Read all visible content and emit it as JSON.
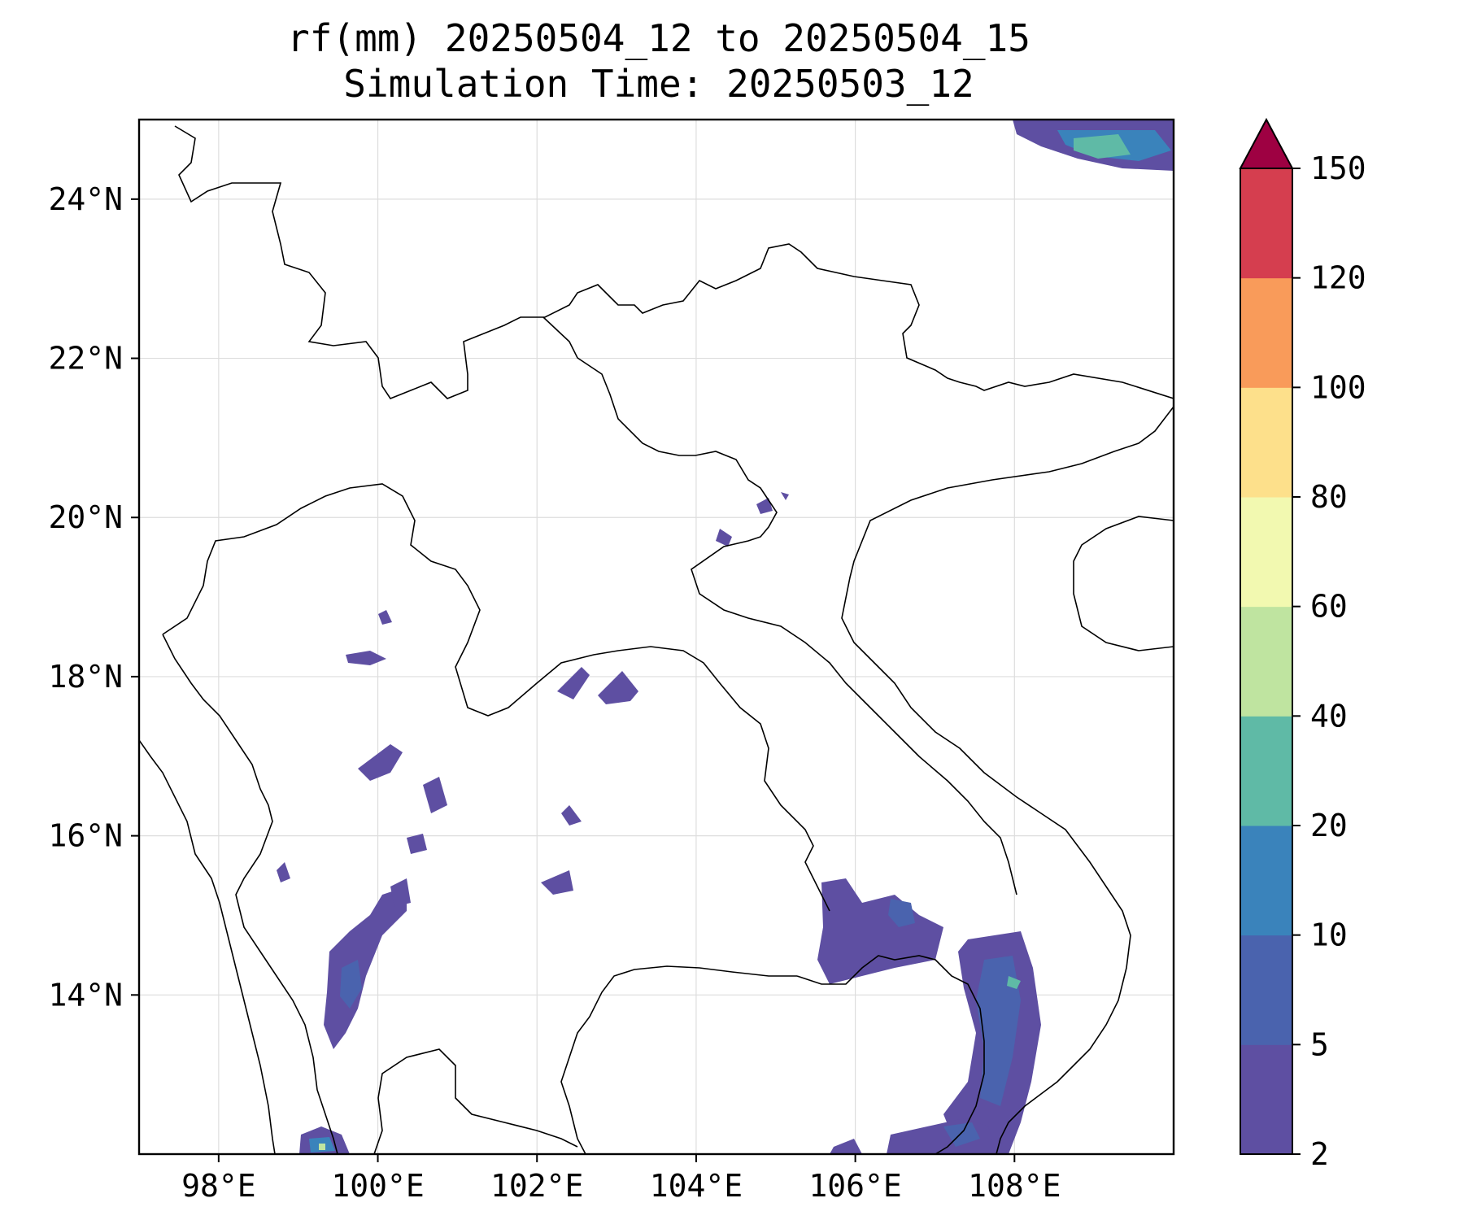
{
  "title": "rf(mm) 20250504_12 to 20250504_15",
  "subtitle": "Simulation Time: 20250503_12",
  "map": {
    "extent": {
      "lon": [
        97.0,
        110.0
      ],
      "lat": [
        12.0,
        25.0
      ]
    },
    "lon_ticks": [
      {
        "value": 98,
        "label": "98°E"
      },
      {
        "value": 100,
        "label": "100°E"
      },
      {
        "value": 102,
        "label": "102°E"
      },
      {
        "value": 104,
        "label": "104°E"
      },
      {
        "value": 106,
        "label": "106°E"
      },
      {
        "value": 108,
        "label": "108°E"
      }
    ],
    "lat_ticks": [
      {
        "value": 14,
        "label": "14°N"
      },
      {
        "value": 16,
        "label": "16°N"
      },
      {
        "value": 18,
        "label": "18°N"
      },
      {
        "value": 20,
        "label": "20°N"
      },
      {
        "value": 22,
        "label": "22°N"
      },
      {
        "value": 24,
        "label": "24°N"
      }
    ],
    "gridlines": true
  },
  "colorbar": {
    "levels": [
      2,
      5,
      10,
      20,
      40,
      60,
      80,
      100,
      120,
      150
    ],
    "colors": [
      "#5e4fa2",
      "#4a63ae",
      "#3a83bb",
      "#5fbaa6",
      "#bfe4a0",
      "#f2f9b0",
      "#fde08b",
      "#f99b5a",
      "#d53e4f"
    ],
    "extend_color": "#9e0142",
    "labels": [
      "2",
      "5",
      "10",
      "20",
      "40",
      "60",
      "80",
      "100",
      "120",
      "150"
    ]
  },
  "rain_areas": [
    {
      "lon": 108.3,
      "lat": 24.3,
      "level": 3,
      "note": "NE corner band"
    },
    {
      "lon": 107.9,
      "lat": 14.0,
      "level": 2
    },
    {
      "lon": 107.0,
      "lat": 12.2,
      "level": 2
    },
    {
      "lon": 99.8,
      "lat": 14.2,
      "level": 1
    },
    {
      "lon": 99.7,
      "lat": 12.1,
      "level": 3
    },
    {
      "lon": 106.2,
      "lat": 14.8,
      "level": 1
    },
    {
      "lon": 103.2,
      "lat": 17.8,
      "level": 0
    }
  ]
}
